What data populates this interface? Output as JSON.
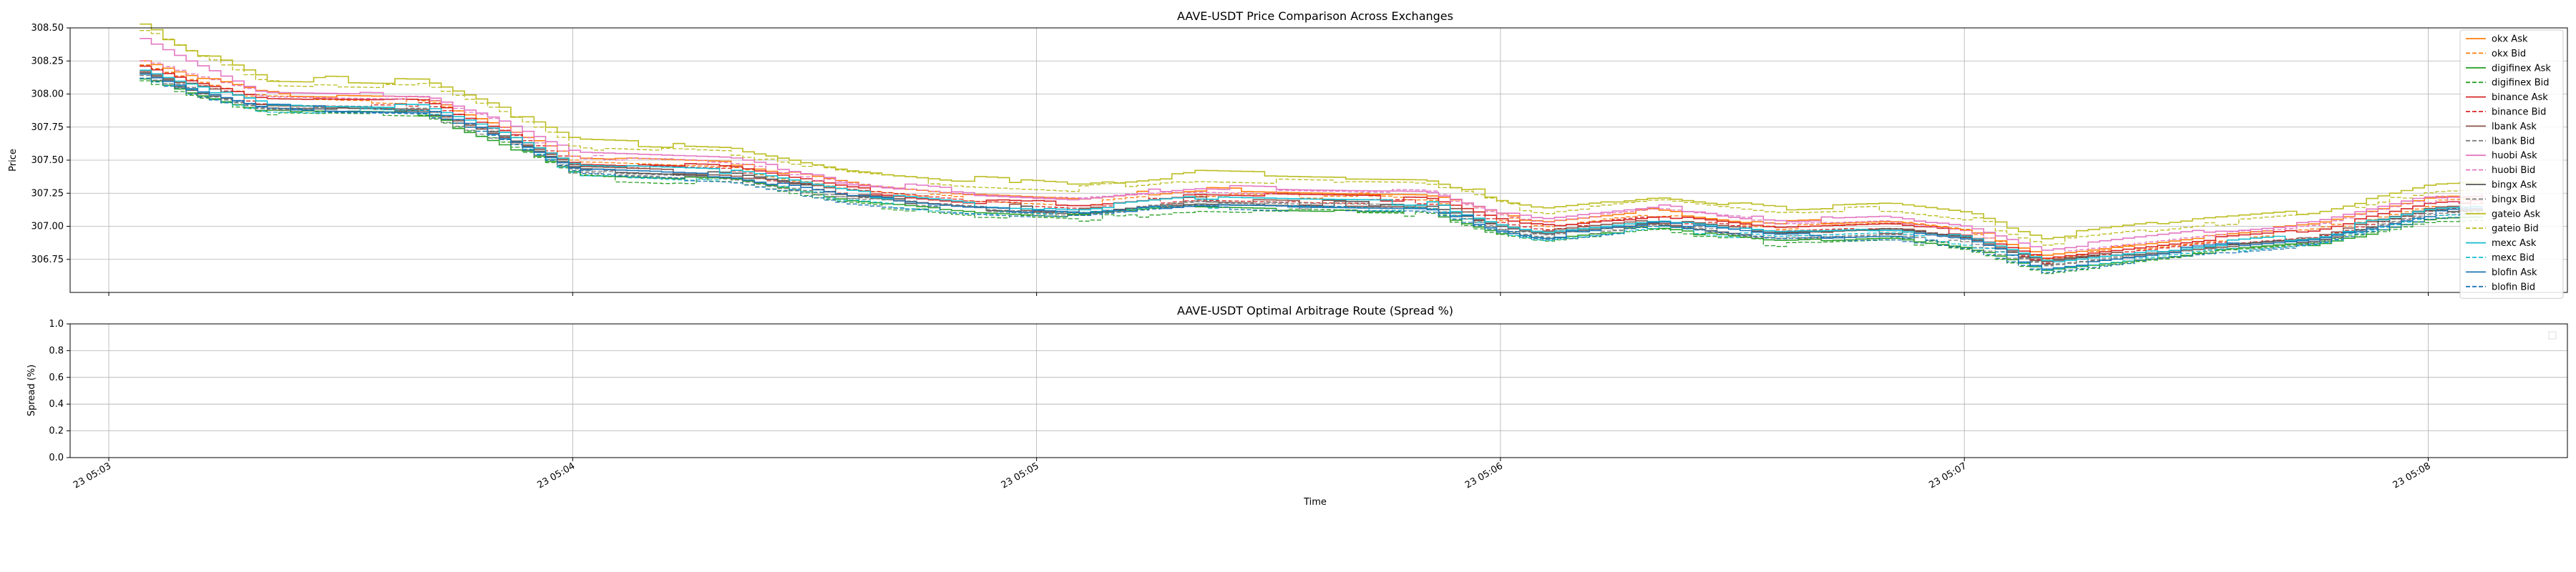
{
  "chart_data": [
    {
      "type": "line",
      "title": "AAVE-USDT Price Comparison Across Exchanges",
      "xlabel": "",
      "ylabel": "Price",
      "ylim": [
        306.5,
        308.5
      ],
      "yticks": [
        "306.75",
        "307.00",
        "307.25",
        "307.50",
        "307.75",
        "308.00",
        "308.25",
        "308.50"
      ],
      "x_range": [
        "05:02:55",
        "05:08:18"
      ],
      "grid": true,
      "legend_position": "upper right",
      "x_tick_times": [
        "05:03",
        "05:04",
        "05:05",
        "05:06",
        "05:07",
        "05:08"
      ],
      "price_anchors": {
        "x": [
          "05:03:04",
          "05:03:10",
          "05:03:20",
          "05:03:40",
          "05:03:50",
          "05:04:00",
          "05:04:20",
          "05:04:35",
          "05:04:50",
          "05:05:05",
          "05:05:20",
          "05:05:35",
          "05:05:50",
          "05:06:00",
          "05:06:05",
          "05:06:20",
          "05:06:35",
          "05:06:50",
          "05:07:00",
          "05:07:10",
          "05:07:30",
          "05:07:45",
          "05:08:00",
          "05:08:07"
        ],
        "y": [
          308.05,
          307.98,
          307.9,
          307.88,
          307.68,
          307.42,
          307.38,
          307.22,
          307.14,
          307.1,
          307.18,
          307.16,
          307.15,
          306.98,
          306.93,
          307.02,
          306.92,
          306.95,
          306.88,
          306.7,
          306.83,
          306.9,
          307.1,
          307.12
        ]
      },
      "series": [
        {
          "name": "okx Ask",
          "color": "#ff7f0e",
          "dash": "solid",
          "offset": 0.1
        },
        {
          "name": "okx Bid",
          "color": "#ff7f0e",
          "dash": "dashed",
          "offset": 0.07
        },
        {
          "name": "digifinex Ask",
          "color": "#2ca02c",
          "dash": "solid",
          "offset": -0.03
        },
        {
          "name": "digifinex Bid",
          "color": "#2ca02c",
          "dash": "dashed",
          "offset": -0.05
        },
        {
          "name": "binance Ask",
          "color": "#d62728",
          "dash": "solid",
          "offset": 0.06
        },
        {
          "name": "binance Bid",
          "color": "#d62728",
          "dash": "dashed",
          "offset": 0.04
        },
        {
          "name": "lbank Ask",
          "color": "#8c564b",
          "dash": "solid",
          "offset": 0.02
        },
        {
          "name": "lbank Bid",
          "color": "#7f7f7f",
          "dash": "dashed",
          "offset": 0.0
        },
        {
          "name": "huobi Ask",
          "color": "#e377c2",
          "dash": "solid",
          "offset": 0.12
        },
        {
          "name": "huobi Bid",
          "color": "#e377c2",
          "dash": "dashed",
          "offset": 0.1
        },
        {
          "name": "bingx Ask",
          "color": "#555555",
          "dash": "solid",
          "offset": 0.01
        },
        {
          "name": "bingx Bid",
          "color": "#7f7f7f",
          "dash": "dashed",
          "offset": -0.01
        },
        {
          "name": "gateio Ask",
          "color": "#bcbd22",
          "dash": "solid",
          "offset": 0.22
        },
        {
          "name": "gateio Bid",
          "color": "#bcbd22",
          "dash": "dashed",
          "offset": 0.18
        },
        {
          "name": "mexc Ask",
          "color": "#17becf",
          "dash": "solid",
          "offset": 0.03
        },
        {
          "name": "mexc Bid",
          "color": "#17becf",
          "dash": "dashed",
          "offset": -0.02
        },
        {
          "name": "blofin Ask",
          "color": "#1f77b4",
          "dash": "solid",
          "offset": 0.0
        },
        {
          "name": "blofin Bid",
          "color": "#1f77b4",
          "dash": "dashed",
          "offset": -0.03
        }
      ]
    },
    {
      "type": "line",
      "title": "AAVE-USDT Optimal Arbitrage Route (Spread %)",
      "xlabel": "Time",
      "ylabel": "Spread (%)",
      "ylim": [
        0.0,
        1.0
      ],
      "yticks": [
        "0.0",
        "0.2",
        "0.4",
        "0.6",
        "0.8",
        "1.0"
      ],
      "xticks": [
        "23 05:03",
        "23 05:04",
        "23 05:05",
        "23 05:06",
        "23 05:07",
        "23 05:08"
      ],
      "grid": true,
      "series": []
    }
  ]
}
